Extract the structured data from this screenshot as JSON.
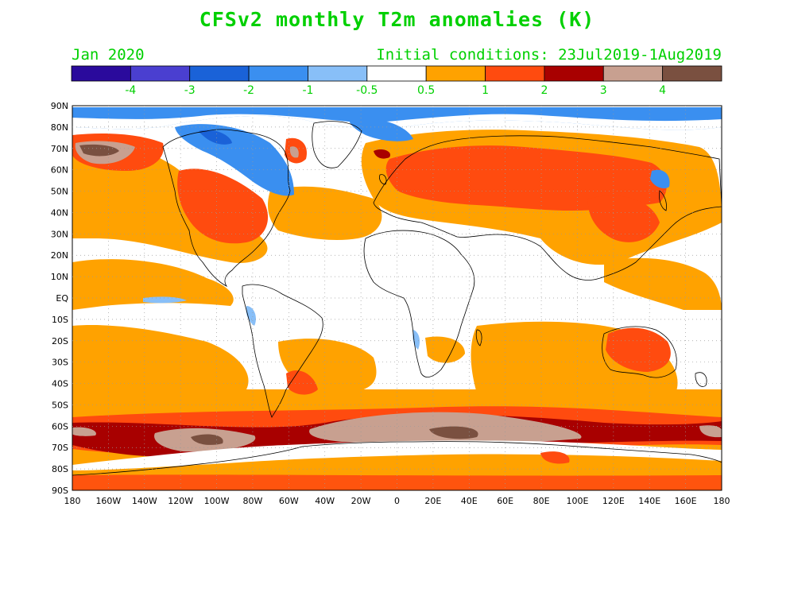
{
  "title": "CFSv2 monthly T2m anomalies (K)",
  "valid_month": "Jan 2020",
  "initial_conditions": "Initial conditions: 23Jul2019-1Aug2019",
  "colorbar": {
    "colors": [
      "#2a0a9c",
      "#4a3fd0",
      "#1a62d8",
      "#3a8ff0",
      "#88bff8",
      "#ffffff",
      "#ffa200",
      "#ff4b0f",
      "#a80000",
      "#c8a090",
      "#7a5040"
    ],
    "labels": [
      "-4",
      "-3",
      "-2",
      "-1",
      "-0.5",
      "0.5",
      "1",
      "2",
      "3",
      "4"
    ]
  },
  "map": {
    "lat_labels": [
      "90N",
      "80N",
      "70N",
      "60N",
      "50N",
      "40N",
      "30N",
      "20N",
      "10N",
      "EQ",
      "10S",
      "20S",
      "30S",
      "40S",
      "50S",
      "60S",
      "70S",
      "80S",
      "90S"
    ],
    "lon_labels": [
      "180",
      "160W",
      "140W",
      "120W",
      "100W",
      "80W",
      "60W",
      "40W",
      "20W",
      "0",
      "20E",
      "40E",
      "60E",
      "80E",
      "100E",
      "120E",
      "140E",
      "160E",
      "180"
    ]
  }
}
